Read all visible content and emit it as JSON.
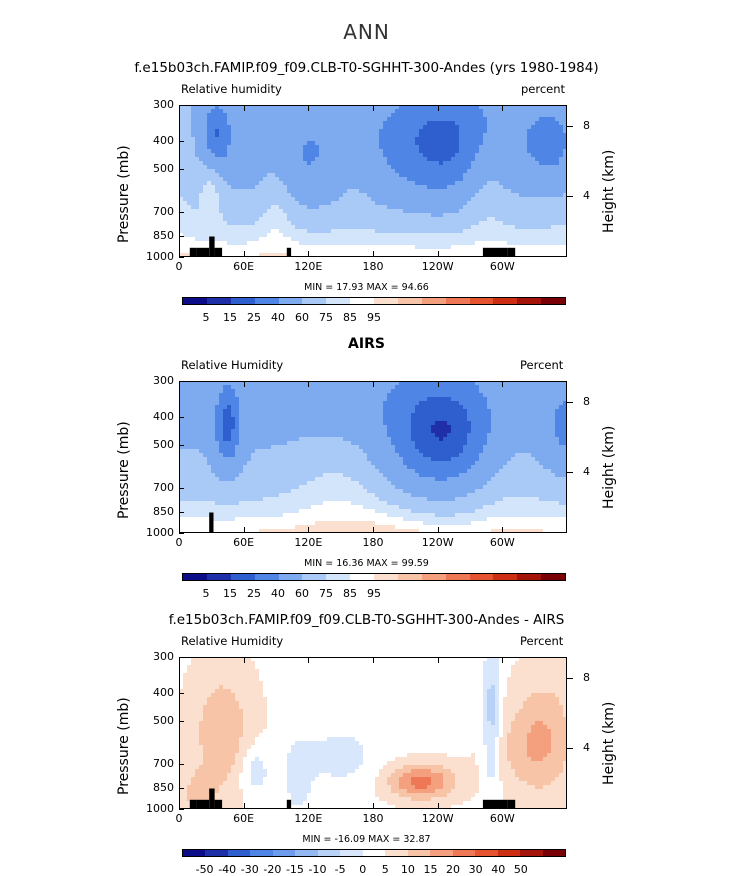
{
  "figure_title": "ANN",
  "colors": {
    "abs": [
      "#0d0d8a",
      "#1f2fa8",
      "#2f5ecf",
      "#4f86e6",
      "#7eaaef",
      "#a9c9f7",
      "#d2e5fa",
      "#ffffff",
      "#fbe0d0",
      "#f8c4a8",
      "#f4a07e",
      "#ee7855",
      "#e5532f",
      "#cc2f14",
      "#a5140a",
      "#7a0008"
    ],
    "diff": [
      "#0d0d8a",
      "#1f2fa8",
      "#2f5ecf",
      "#4f86e6",
      "#6e9cec",
      "#93b8f2",
      "#b7d1f7",
      "#d8e7fb",
      "#ffffff",
      "#fbe0d0",
      "#f8c4a8",
      "#f4a07e",
      "#ee7855",
      "#e5532f",
      "#cc2f14",
      "#a5140a",
      "#7a0008"
    ]
  },
  "panels": [
    {
      "title": "f.e15b03ch.FAMIP.f09_f09.CLB-T0-SGHHT-300-Andes (yrs 1980-1984)",
      "left_label": "Relative humidity",
      "right_label": "percent",
      "min_max": "MIN =   17.93   MAX =   94.66",
      "colorbar_labels": [
        "5",
        "15",
        "25",
        "40",
        "60",
        "75",
        "85",
        "95"
      ]
    },
    {
      "title": "AIRS",
      "left_label": "Relative Humidity",
      "right_label": "Percent",
      "min_max": "MIN =   16.36   MAX =   99.59",
      "colorbar_labels": [
        "5",
        "15",
        "25",
        "40",
        "60",
        "75",
        "85",
        "95"
      ]
    },
    {
      "title": "f.e15b03ch.FAMIP.f09_f09.CLB-T0-SGHHT-300-Andes - AIRS",
      "left_label": "Relative Humidity",
      "right_label": "Percent",
      "min_max": "MIN = -16.09   MAX =   32.87",
      "colorbar_labels": [
        "-50",
        "-40",
        "-30",
        "-20",
        "-15",
        "-10",
        "-5",
        "0",
        "5",
        "10",
        "15",
        "20",
        "30",
        "40",
        "50"
      ]
    }
  ],
  "axes": {
    "y_label": "Pressure (mb)",
    "y_right_label": "Height (km)",
    "y_ticks": [
      "300",
      "400",
      "500",
      "700",
      "850",
      "1000"
    ],
    "y_right_ticks": [
      "8",
      "4"
    ],
    "x_ticks": [
      "0",
      "60E",
      "120E",
      "180",
      "120W",
      "60W"
    ]
  },
  "chart_data": [
    {
      "type": "heatmap",
      "title": "f.e15b03ch.FAMIP.f09_f09.CLB-T0-SGHHT-300-Andes (yrs 1980-1984)",
      "variable": "Relative humidity",
      "units": "percent",
      "x_range_deg_east": [
        0,
        360
      ],
      "y_range_mb": [
        1000,
        300
      ],
      "contour_levels": [
        5,
        15,
        25,
        40,
        60,
        75,
        85,
        95
      ],
      "min": 17.93,
      "max": 94.66
    },
    {
      "type": "heatmap",
      "title": "AIRS",
      "variable": "Relative Humidity",
      "units": "Percent",
      "x_range_deg_east": [
        0,
        360
      ],
      "y_range_mb": [
        1000,
        300
      ],
      "contour_levels": [
        5,
        15,
        25,
        40,
        60,
        75,
        85,
        95
      ],
      "min": 16.36,
      "max": 99.59
    },
    {
      "type": "heatmap",
      "title": "f.e15b03ch.FAMIP.f09_f09.CLB-T0-SGHHT-300-Andes - AIRS",
      "variable": "Relative Humidity",
      "units": "Percent",
      "x_range_deg_east": [
        0,
        360
      ],
      "y_range_mb": [
        1000,
        300
      ],
      "contour_levels": [
        -50,
        -40,
        -30,
        -20,
        -15,
        -10,
        -5,
        0,
        5,
        10,
        15,
        20,
        30,
        40,
        50
      ],
      "min": -16.09,
      "max": 32.87
    }
  ]
}
